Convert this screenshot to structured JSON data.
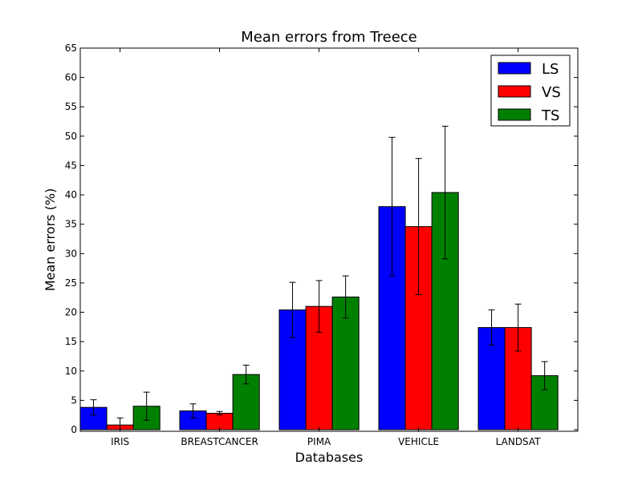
{
  "chart_data": {
    "type": "bar",
    "title": "Mean errors from Treece",
    "xlabel": "Databases",
    "ylabel": "Mean errors (%)",
    "ylim": [
      0,
      65
    ],
    "yticks": [
      0,
      5,
      10,
      15,
      20,
      25,
      30,
      35,
      40,
      45,
      50,
      55,
      60,
      65
    ],
    "categories": [
      "IRIS",
      "BREASTCANCER",
      "PIMA",
      "VEHICLE",
      "LANDSAT"
    ],
    "legend_position": "top-right",
    "grid": false,
    "series": [
      {
        "name": "LS",
        "color": "#0000ff",
        "values": [
          3.8,
          3.2,
          20.4,
          38.0,
          17.4
        ],
        "errors": [
          1.3,
          1.2,
          4.7,
          11.8,
          3.0
        ]
      },
      {
        "name": "VS",
        "color": "#ff0000",
        "values": [
          0.8,
          2.8,
          21.0,
          34.6,
          17.4
        ],
        "errors": [
          1.2,
          0.3,
          4.4,
          11.6,
          4.0
        ]
      },
      {
        "name": "TS",
        "color": "#008000",
        "values": [
          4.0,
          9.4,
          22.6,
          40.4,
          9.2
        ],
        "errors": [
          2.4,
          1.6,
          3.6,
          11.3,
          2.4
        ]
      }
    ]
  }
}
